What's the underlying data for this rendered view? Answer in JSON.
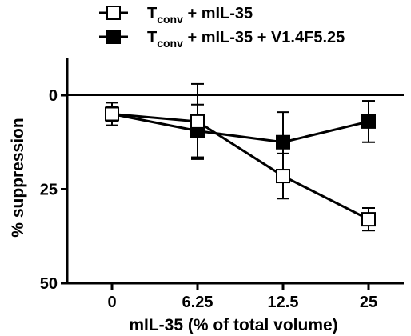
{
  "chart_data": {
    "type": "line",
    "title": "",
    "xlabel": "mIL-35  (% of total volume)",
    "ylabel": "% suppression",
    "categories": [
      "0",
      "6.25",
      "12.5",
      "25"
    ],
    "y_axis": {
      "reversed": true,
      "ylim": [
        50,
        -10
      ],
      "ticks": [
        0,
        25,
        50
      ],
      "reference_line": 0
    },
    "grid": false,
    "legend_position": "top",
    "series": [
      {
        "name_main": "T",
        "name_sub": "conv",
        "name_rest": " + mIL-35",
        "marker": "open-square",
        "values": [
          5,
          7,
          21.5,
          33
        ],
        "errors": [
          2,
          10,
          6,
          3
        ]
      },
      {
        "name_main": "T",
        "name_sub": "conv",
        "name_rest": " + mIL-35 + V1.4F5.25",
        "marker": "filled-square",
        "values": [
          5,
          9.5,
          12.5,
          7
        ],
        "errors": [
          3,
          7,
          8,
          5.5
        ]
      }
    ]
  }
}
